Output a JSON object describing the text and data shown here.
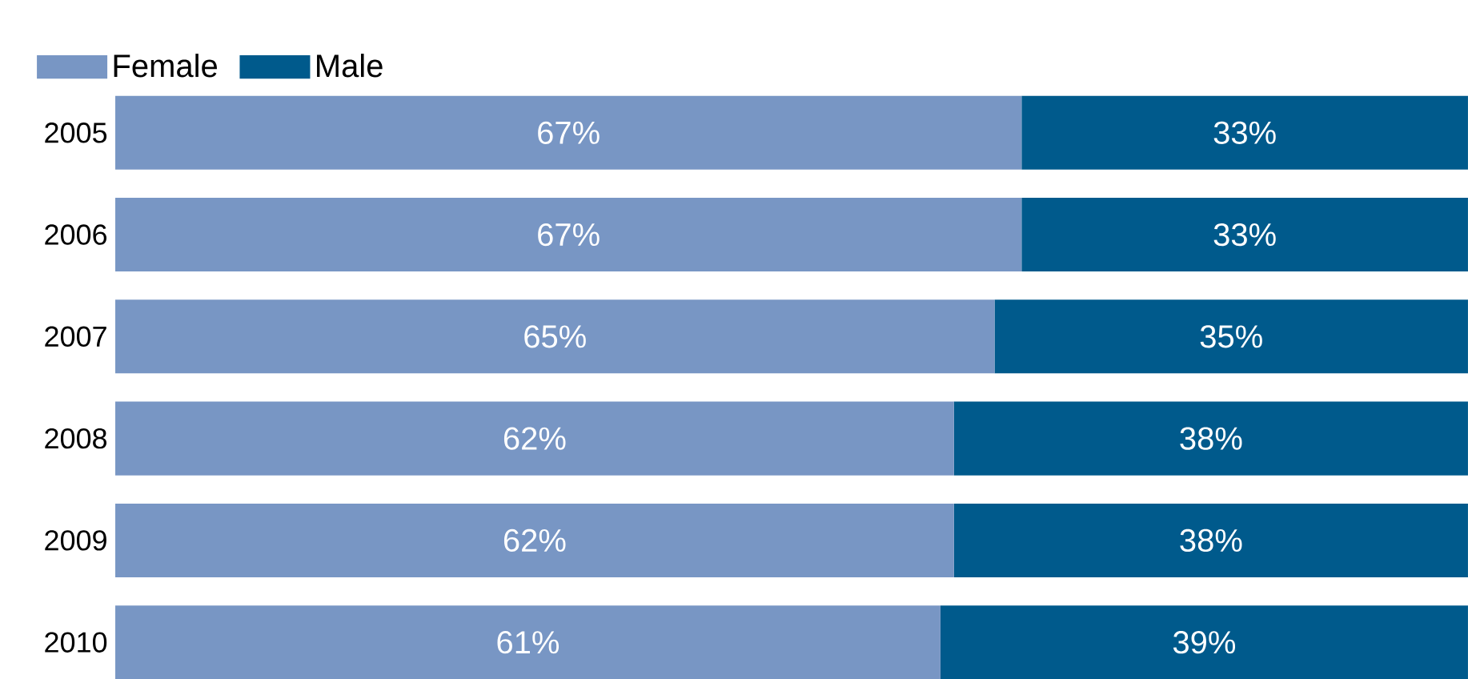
{
  "chart_data": {
    "type": "bar",
    "orientation": "horizontal",
    "stacked": true,
    "categories": [
      "2005",
      "2006",
      "2007",
      "2008",
      "2009",
      "2010"
    ],
    "series": [
      {
        "name": "Female",
        "color": "#7896c4",
        "values": [
          67,
          67,
          65,
          62,
          62,
          61
        ],
        "value_labels": [
          "67%",
          "67%",
          "65%",
          "62%",
          "62%",
          "61%"
        ]
      },
      {
        "name": "Male",
        "color": "#005a8c",
        "values": [
          33,
          33,
          35,
          38,
          38,
          39
        ],
        "value_labels": [
          "33%",
          "33%",
          "35%",
          "38%",
          "38%",
          "39%"
        ]
      }
    ],
    "legend": "top left",
    "tick_labels": "y"
  }
}
